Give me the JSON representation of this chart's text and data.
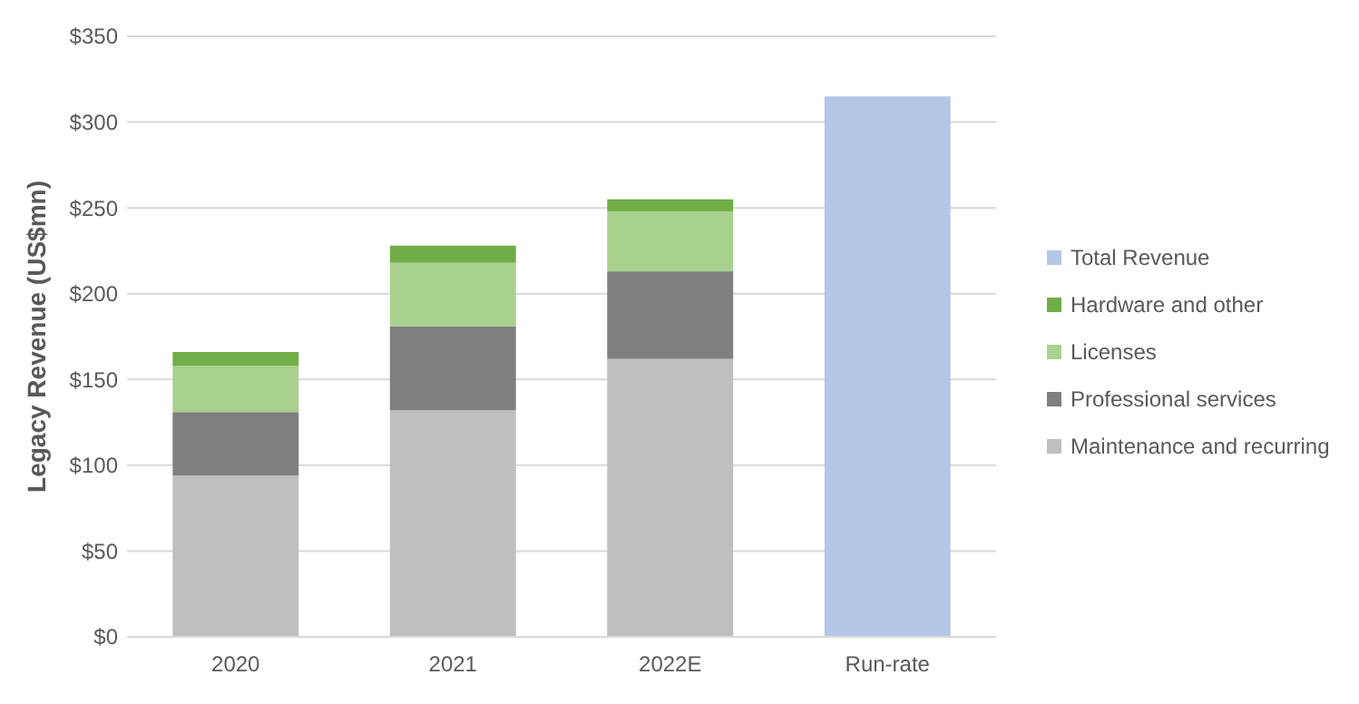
{
  "chart_data": {
    "type": "bar",
    "ylabel": "Legacy Revenue (US$mn)",
    "categories": [
      "2020",
      "2021",
      "2022E",
      "Run-rate"
    ],
    "stacked": true,
    "series": [
      {
        "name": "Maintenance and recurring",
        "color": "#bfbfbf",
        "values": [
          94,
          132,
          162,
          null
        ]
      },
      {
        "name": "Professional services",
        "color": "#7f7f7f",
        "values": [
          37,
          49,
          51,
          null
        ]
      },
      {
        "name": "Licenses",
        "color": "#a9d18e",
        "values": [
          27,
          37,
          35,
          null
        ]
      },
      {
        "name": "Hardware and other",
        "color": "#70ad47",
        "values": [
          8,
          10,
          7,
          null
        ]
      },
      {
        "name": "Total Revenue",
        "color": "#b4c7e7",
        "values": [
          null,
          null,
          null,
          315
        ]
      }
    ],
    "ylim": [
      0,
      350
    ],
    "yticks": [
      {
        "value": 0,
        "label": "$0"
      },
      {
        "value": 50,
        "label": "$50"
      },
      {
        "value": 100,
        "label": "$100"
      },
      {
        "value": 150,
        "label": "$150"
      },
      {
        "value": 200,
        "label": "$200"
      },
      {
        "value": 250,
        "label": "$250"
      },
      {
        "value": 300,
        "label": "$300"
      },
      {
        "value": 350,
        "label": "$350"
      }
    ],
    "grid": "y",
    "legend": "right"
  }
}
